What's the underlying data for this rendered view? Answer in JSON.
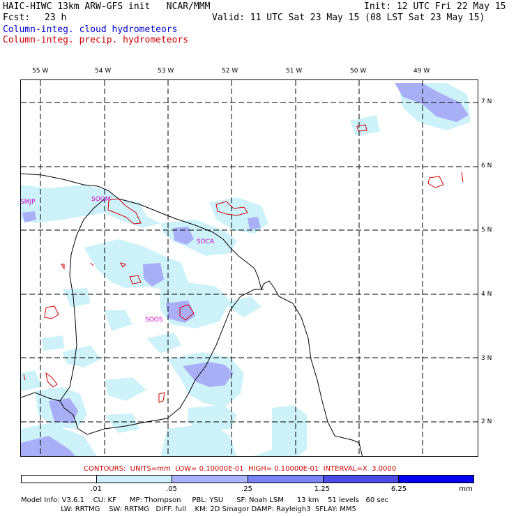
{
  "header": {
    "title_left": "HAIC-HIWC 13km ARW-GFS init   NCAR/MMM",
    "init": "Init: 12 UTC Fri 22 May 15",
    "fcst_label": "Fcst:",
    "fcst_value": "23 h",
    "valid": "Valid: 11 UTC Sat 23 May 15 (08 LST Sat 23 May 15)",
    "field1": "Column-integ. cloud hydrometeors",
    "field2": "Column-integ. precip. hydrometeors"
  },
  "axes": {
    "lon_labels": [
      "55 W",
      "54 W",
      "53 W",
      "52 W",
      "51 W",
      "50 W",
      "49 W"
    ],
    "lat_labels": [
      "7 N",
      "6 N",
      "5 N",
      "4 N",
      "3 N",
      "2 N"
    ]
  },
  "stations": [
    "SMJP",
    "SOGM",
    "SOCA",
    "SOOS"
  ],
  "contours_text": "CONTOURS:  UNITS=mm  LOW= 0.10000E-01  HIGH= 0.10000E-01  INTERVAL=X  3.0000",
  "colorbar": {
    "ticks": [
      ".01",
      ".05",
      ".25",
      "1.25",
      "6.25"
    ],
    "unit": "mm",
    "colors": [
      "#ffffff",
      "#cfefff",
      "#aab4ff",
      "#7a84f6",
      "#4b4be8",
      "#0000ee"
    ]
  },
  "footer": {
    "line1": "Model Info: V3.6.1    CU: KF      MP: Thompson     PBL: YSU      SF: Noah LSM      13 km    51 levels   60 sec",
    "line2": "                  LW: RRTMG    SW: RRTMG   DIFF: full    KM: 2D Smagor DAMP: Rayleigh3  SFLAY: MM5"
  },
  "colors": {
    "cloud_light": "#cdf2fa",
    "cloud_mid": "#a9aff7",
    "precip_contour": "#d40000",
    "title_blue": "#0000cc",
    "title_red": "#cc0000",
    "station": "#cc00cc"
  }
}
